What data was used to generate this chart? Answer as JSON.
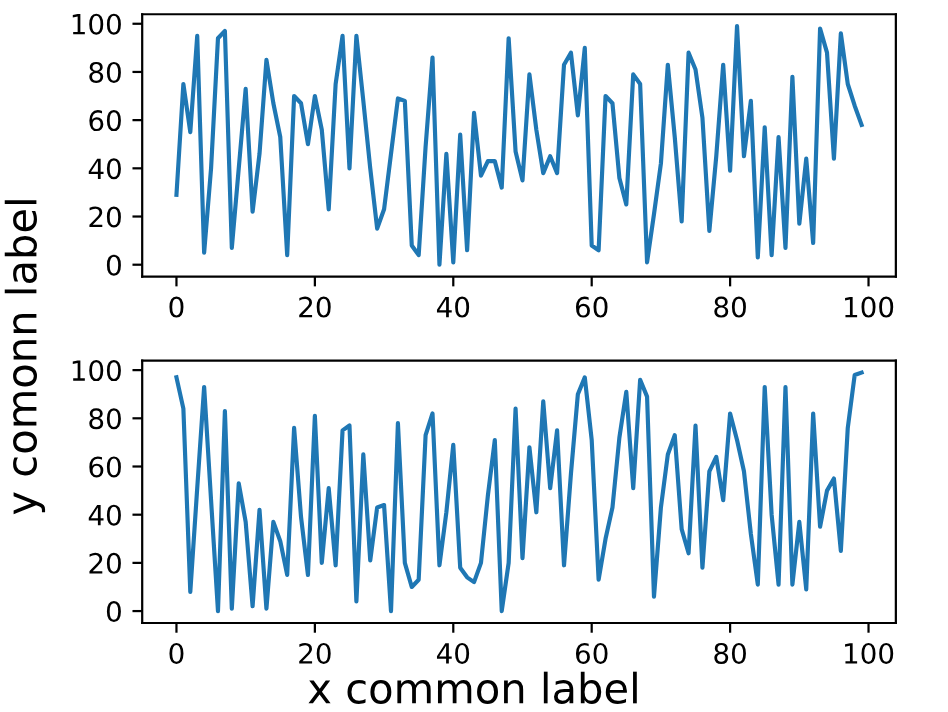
{
  "chart_data": [
    {
      "type": "line",
      "ylabel": "y comonn label",
      "x": [
        0,
        1,
        2,
        3,
        4,
        5,
        6,
        7,
        8,
        9,
        10,
        11,
        12,
        13,
        14,
        15,
        16,
        17,
        18,
        19,
        20,
        21,
        22,
        23,
        24,
        25,
        26,
        27,
        28,
        29,
        30,
        31,
        32,
        33,
        34,
        35,
        36,
        37,
        38,
        39,
        40,
        41,
        42,
        43,
        44,
        45,
        46,
        47,
        48,
        49,
        50,
        51,
        52,
        53,
        54,
        55,
        56,
        57,
        58,
        59,
        60,
        61,
        62,
        63,
        64,
        65,
        66,
        67,
        68,
        69,
        70,
        71,
        72,
        73,
        74,
        75,
        76,
        77,
        78,
        79,
        80,
        81,
        82,
        83,
        84,
        85,
        86,
        87,
        88,
        89,
        90,
        91,
        92,
        93,
        94,
        95,
        96,
        97,
        98,
        99
      ],
      "series": [
        {
          "color": "#1f77b4",
          "values": [
            29,
            75,
            55,
            95,
            5,
            40,
            94,
            97,
            7,
            40,
            73,
            22,
            46,
            85,
            67,
            53,
            4,
            70,
            67,
            50,
            70,
            56,
            23,
            75,
            95,
            40,
            95,
            68,
            40,
            15,
            23,
            46,
            69,
            68,
            8,
            4,
            49,
            86,
            0,
            46,
            1,
            54,
            6,
            63,
            37,
            43,
            43,
            32,
            94,
            47,
            35,
            79,
            56,
            38,
            45,
            38,
            83,
            88,
            62,
            90,
            8,
            6,
            70,
            67,
            36,
            25,
            79,
            75,
            1,
            21,
            42,
            83,
            53,
            18,
            88,
            81,
            61,
            14,
            45,
            83,
            39,
            99,
            45,
            68,
            3,
            57,
            4,
            53,
            7,
            78,
            17,
            44,
            9,
            98,
            88,
            44,
            96,
            75,
            66,
            58
          ]
        }
      ],
      "xlim": [
        -4.95,
        103.95
      ],
      "ylim": [
        -4.95,
        103.95
      ],
      "xticks": [
        0,
        20,
        40,
        60,
        80,
        100
      ],
      "yticks": [
        0,
        20,
        40,
        60,
        80,
        100
      ],
      "grid": false,
      "legend": false
    },
    {
      "type": "line",
      "xlabel": "x common label",
      "x": [
        0,
        1,
        2,
        3,
        4,
        5,
        6,
        7,
        8,
        9,
        10,
        11,
        12,
        13,
        14,
        15,
        16,
        17,
        18,
        19,
        20,
        21,
        22,
        23,
        24,
        25,
        26,
        27,
        28,
        29,
        30,
        31,
        32,
        33,
        34,
        35,
        36,
        37,
        38,
        39,
        40,
        41,
        42,
        43,
        44,
        45,
        46,
        47,
        48,
        49,
        50,
        51,
        52,
        53,
        54,
        55,
        56,
        57,
        58,
        59,
        60,
        61,
        62,
        63,
        64,
        65,
        66,
        67,
        68,
        69,
        70,
        71,
        72,
        73,
        74,
        75,
        76,
        77,
        78,
        79,
        80,
        81,
        82,
        83,
        84,
        85,
        86,
        87,
        88,
        89,
        90,
        91,
        92,
        93,
        94,
        95,
        96,
        97,
        98,
        99
      ],
      "series": [
        {
          "color": "#1f77b4",
          "values": [
            97,
            84,
            8,
            51,
            93,
            46,
            0,
            83,
            1,
            53,
            37,
            2,
            42,
            1,
            37,
            29,
            15,
            76,
            39,
            15,
            81,
            20,
            51,
            19,
            75,
            77,
            4,
            65,
            21,
            43,
            44,
            0,
            78,
            20,
            10,
            13,
            73,
            82,
            19,
            41,
            69,
            18,
            14,
            12,
            20,
            48,
            71,
            0,
            20,
            84,
            22,
            68,
            41,
            87,
            51,
            75,
            19,
            57,
            90,
            97,
            71,
            13,
            30,
            43,
            72,
            91,
            51,
            96,
            89,
            6,
            43,
            65,
            73,
            34,
            24,
            77,
            18,
            58,
            64,
            46,
            82,
            71,
            58,
            32,
            11,
            93,
            40,
            11,
            93,
            11,
            37,
            9,
            82,
            35,
            50,
            55,
            25,
            76,
            98,
            99
          ]
        }
      ],
      "xlim": [
        -4.95,
        103.95
      ],
      "ylim": [
        -4.95,
        103.95
      ],
      "xticks": [
        0,
        20,
        40,
        60,
        80,
        100
      ],
      "yticks": [
        0,
        20,
        40,
        60,
        80,
        100
      ],
      "grid": false,
      "legend": false
    }
  ]
}
